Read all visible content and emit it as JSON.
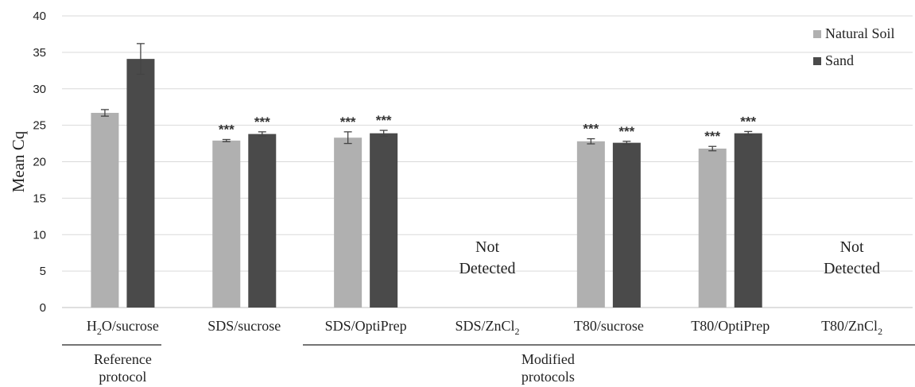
{
  "chart_data": {
    "type": "bar",
    "ylabel": "Mean Cq",
    "ylim": [
      0,
      40
    ],
    "yticks": [
      0,
      5,
      10,
      15,
      20,
      25,
      30,
      35,
      40
    ],
    "grid": true,
    "legend_position": "top-right",
    "categories": [
      {
        "main": "H",
        "sub": "2",
        "rest": "O/sucrose"
      },
      {
        "main": "SDS/sucrose",
        "sub": "",
        "rest": ""
      },
      {
        "main": "SDS/OptiPrep",
        "sub": "",
        "rest": ""
      },
      {
        "main": "SDS/ZnCl",
        "sub": "2",
        "rest": ""
      },
      {
        "main": "T80/sucrose",
        "sub": "",
        "rest": ""
      },
      {
        "main": "T80/OptiPrep",
        "sub": "",
        "rest": ""
      },
      {
        "main": "T80/ZnCl",
        "sub": "2",
        "rest": ""
      }
    ],
    "series": [
      {
        "name": "Natural Soil",
        "color": "#b0b0b0",
        "values": [
          26.7,
          22.9,
          23.3,
          null,
          22.8,
          21.8,
          null
        ],
        "errors": [
          0.45,
          0.15,
          0.8,
          null,
          0.35,
          0.3,
          null
        ],
        "significance": [
          "",
          "***",
          "***",
          "",
          "***",
          "***",
          ""
        ]
      },
      {
        "name": "Sand",
        "color": "#4a4a4a",
        "values": [
          34.1,
          23.8,
          23.9,
          null,
          22.6,
          23.9,
          null
        ],
        "errors": [
          2.1,
          0.3,
          0.4,
          null,
          0.2,
          0.25,
          null
        ],
        "significance": [
          "",
          "***",
          "***",
          "",
          "***",
          "***",
          ""
        ]
      }
    ],
    "annotations": [
      {
        "category_index": 3,
        "lines": [
          "Not",
          "Detected"
        ]
      },
      {
        "category_index": 6,
        "lines": [
          "Not",
          "Detected"
        ]
      }
    ],
    "groups": [
      {
        "lines": [
          "Reference",
          "protocol"
        ],
        "span": [
          0,
          0
        ]
      },
      {
        "lines": [
          "Modified",
          "protocols"
        ],
        "span": [
          1,
          6
        ]
      }
    ]
  }
}
